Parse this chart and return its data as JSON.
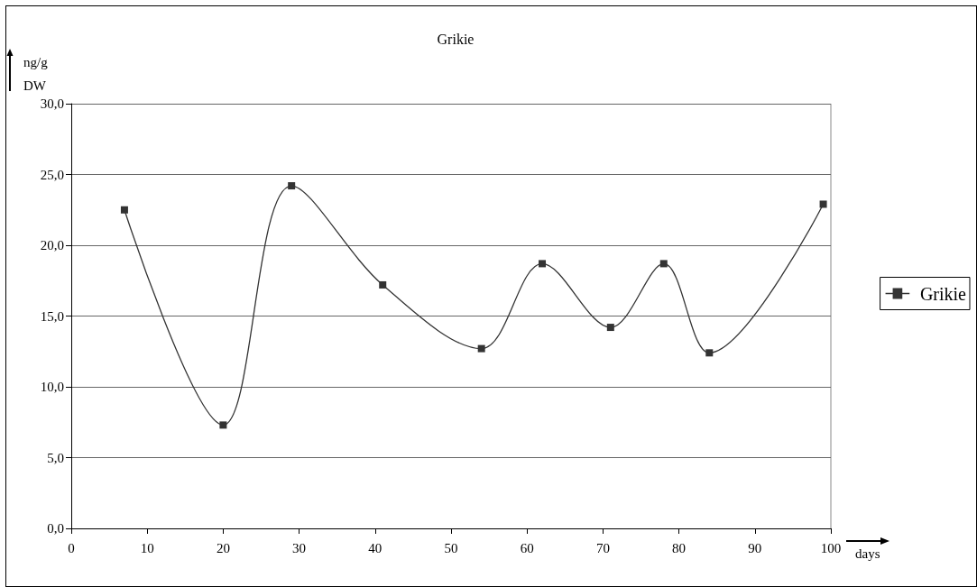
{
  "chart_data": {
    "type": "line",
    "title": "Grikie",
    "xlabel": "days",
    "ylabel": "ng/g\nDW",
    "x": [
      7,
      20,
      29,
      41,
      54,
      62,
      71,
      78,
      84,
      99
    ],
    "series": [
      {
        "name": "Grikie",
        "color": "#333333",
        "values": [
          22.5,
          7.3,
          24.2,
          17.2,
          12.7,
          18.7,
          14.2,
          18.7,
          12.4,
          22.9
        ]
      }
    ],
    "xlim": [
      0,
      100
    ],
    "xticks": [
      0,
      10,
      20,
      30,
      40,
      50,
      60,
      70,
      80,
      90,
      100
    ],
    "ylim": [
      0,
      30
    ],
    "yticks": [
      {
        "value": 0,
        "label": "0,0"
      },
      {
        "value": 5,
        "label": "5,0"
      },
      {
        "value": 10,
        "label": "10,0"
      },
      {
        "value": 15,
        "label": "15,0"
      },
      {
        "value": 20,
        "label": "20,0"
      },
      {
        "value": 25,
        "label": "25,0"
      },
      {
        "value": 30,
        "label": "30,0"
      }
    ],
    "grid": "y",
    "legend": "right",
    "marker": "square",
    "line_style": "solid"
  }
}
